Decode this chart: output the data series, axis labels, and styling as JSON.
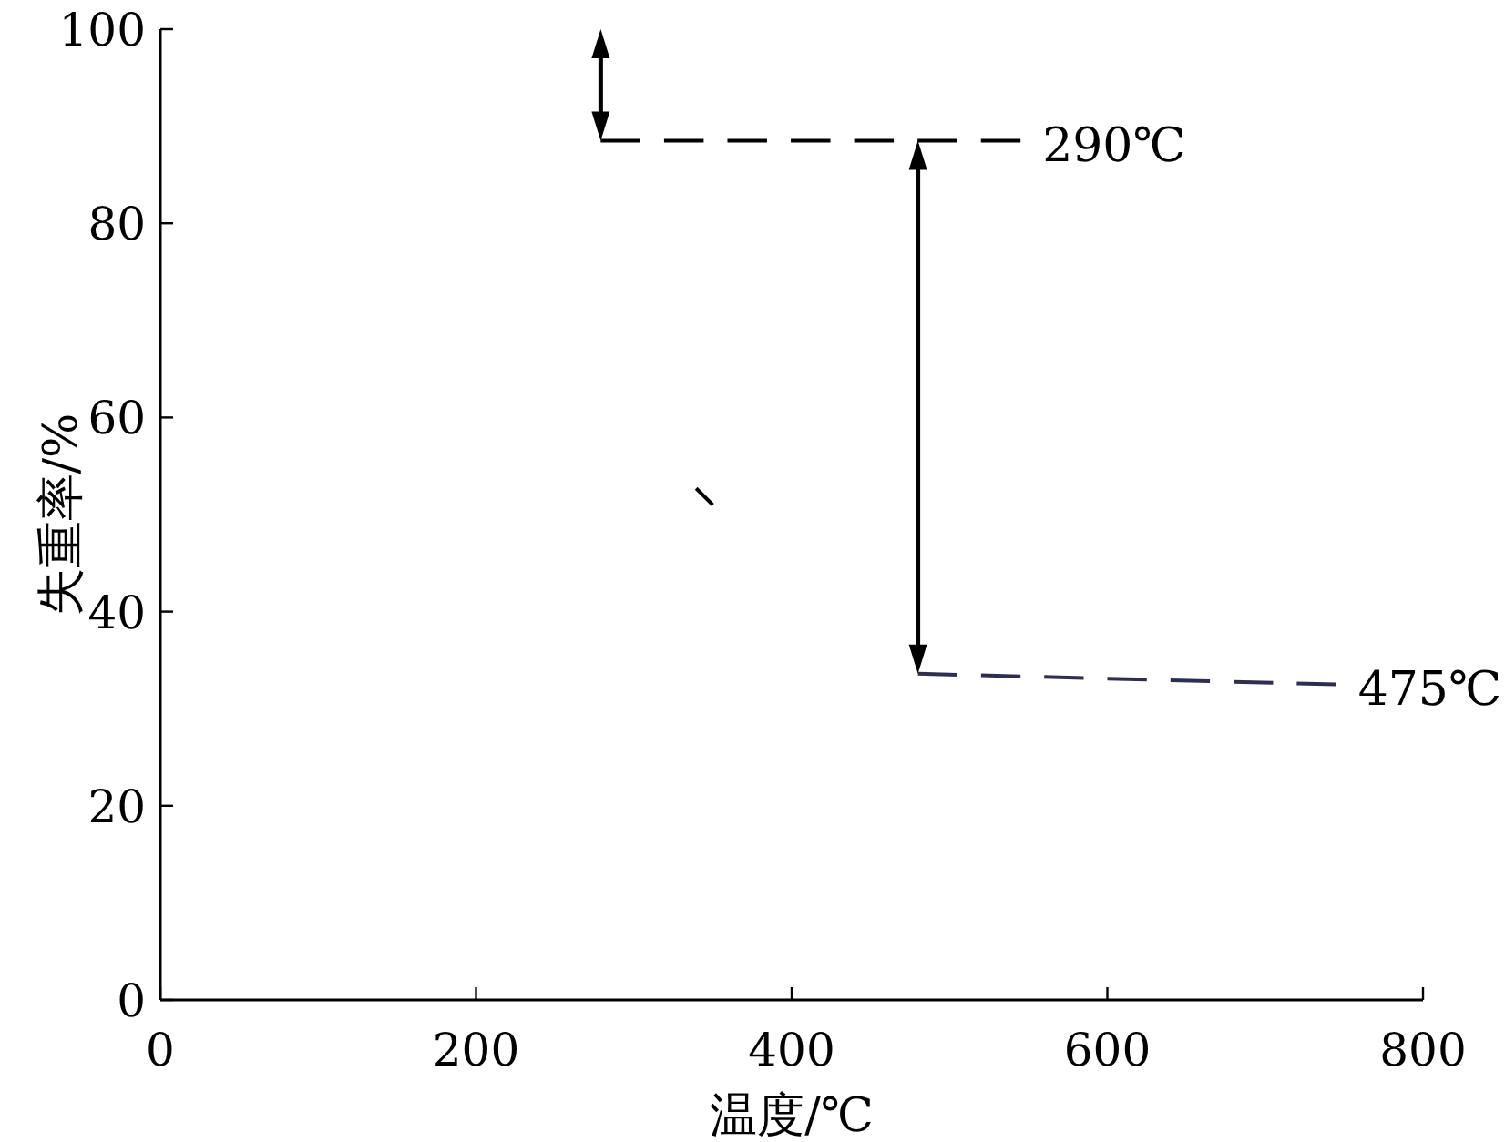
{
  "chart_data": {
    "type": "line",
    "xlabel": "温度/℃",
    "ylabel": "失重率/%",
    "line_style": "dashed",
    "xlim": [
      0,
      800
    ],
    "ylim": [
      0,
      100
    ],
    "xticks": [
      0,
      200,
      400,
      600,
      800
    ],
    "yticks": [
      0,
      20,
      40,
      60,
      80,
      100
    ],
    "grid": false,
    "series": [
      {
        "color": "#000000",
        "x": [
          279,
          545
        ],
        "values": [
          88.5,
          88.5
        ]
      },
      {
        "color": "#2e2e50",
        "x": [
          480,
          745
        ],
        "values": [
          33.6,
          32.5
        ]
      },
      {
        "color": "#000000",
        "line_style": "solid",
        "x": [
          339.5,
          350
        ],
        "values": [
          52.7,
          51.0
        ]
      }
    ],
    "annotations": [
      {
        "text": "290℃",
        "x": 545,
        "y": 88.5
      },
      {
        "text": "475℃",
        "x": 745,
        "y": 32.5
      }
    ]
  }
}
